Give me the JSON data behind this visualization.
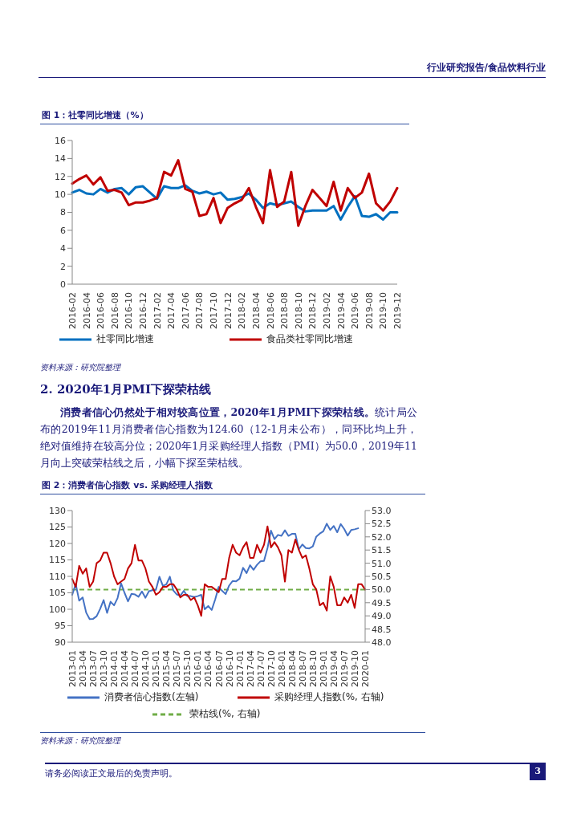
{
  "chart_data": [
    {
      "type": "line",
      "title": "图 1：社零同比增速（%）",
      "categories": [
        "2016-02",
        null,
        "2016-04",
        null,
        "2016-06",
        null,
        "2016-08",
        null,
        "2016-10",
        null,
        "2016-12",
        null,
        "2017-02",
        null,
        "2017-04",
        null,
        "2017-06",
        null,
        "2017-08",
        null,
        "2017-10",
        null,
        "2017-12",
        null,
        "2018-02",
        null,
        "2018-04",
        null,
        "2018-06",
        null,
        "2018-08",
        null,
        "2018-10",
        null,
        "2018-12",
        null,
        "2019-02",
        null,
        "2019-04",
        null,
        "2019-06",
        null,
        "2019-08",
        null,
        "2019-10",
        null,
        "2019-12"
      ],
      "series": [
        {
          "name": "社零同比增速",
          "color": "#0070c0",
          "values": [
            10.2,
            10.5,
            10.1,
            10.0,
            10.6,
            10.2,
            10.6,
            10.7,
            10.0,
            10.8,
            10.9,
            10.2,
            9.5,
            10.9,
            10.7,
            10.7,
            11.0,
            10.4,
            10.1,
            10.3,
            10.0,
            10.2,
            9.4,
            9.5,
            9.7,
            10.1,
            9.4,
            8.5,
            9.0,
            8.8,
            9.0,
            9.2,
            8.6,
            8.1,
            8.2,
            8.2,
            8.2,
            8.7,
            7.2,
            8.6,
            9.8,
            7.6,
            7.5,
            7.8,
            7.2,
            8.0,
            8.0
          ]
        },
        {
          "name": "食品类社零同比增速",
          "color": "#c00000",
          "values": [
            11.2,
            11.7,
            12.1,
            11.1,
            11.9,
            10.4,
            10.5,
            10.2,
            8.8,
            9.1,
            9.1,
            9.3,
            9.6,
            12.5,
            12.1,
            13.8,
            10.6,
            10.3,
            7.6,
            7.8,
            9.6,
            6.8,
            8.5,
            9.0,
            9.4,
            10.7,
            8.6,
            6.8,
            12.7,
            8.6,
            9.2,
            12.5,
            6.5,
            8.7,
            10.5,
            9.6,
            8.7,
            11.4,
            8.2,
            10.7,
            9.6,
            10.2,
            12.3,
            9.0,
            8.2,
            9.2,
            10.7
          ]
        }
      ],
      "ylim": [
        0,
        16
      ],
      "yticks": [
        0,
        2,
        4,
        6,
        8,
        10,
        12,
        14,
        16
      ],
      "legend": "bottom",
      "marker": "none",
      "line_style": "solid",
      "annotations": [
        "行业研究报告/食品饮料行业",
        "资料来源：研究院整理"
      ]
    },
    {
      "type": "line",
      "title": "图 2：消费者信心指数 vs. 采购经理人指数",
      "categories": [
        "2013-01",
        null,
        null,
        "2013-04",
        null,
        null,
        "2013-07",
        null,
        null,
        "2013-10",
        null,
        null,
        "2014-01",
        null,
        null,
        "2014-04",
        null,
        null,
        "2014-07",
        null,
        null,
        "2014-10",
        null,
        null,
        "2015-01",
        null,
        null,
        "2015-04",
        null,
        null,
        "2015-07",
        null,
        null,
        "2015-10",
        null,
        null,
        "2016-01",
        null,
        null,
        "2016-04",
        null,
        null,
        "2016-07",
        null,
        null,
        "2016-10",
        null,
        null,
        "2017-01",
        null,
        null,
        "2017-04",
        null,
        null,
        "2017-07",
        null,
        null,
        "2017-10",
        null,
        null,
        "2018-01",
        null,
        null,
        "2018-04",
        null,
        null,
        "2018-07",
        null,
        null,
        "2018-10",
        null,
        null,
        "2019-01",
        null,
        null,
        "2019-04",
        null,
        null,
        "2019-07",
        null,
        null,
        "2019-10",
        null,
        null,
        "2020-01"
      ],
      "series": [
        {
          "name": "消费者信心指数(左轴)",
          "color": "#4472c4",
          "values": [
            104.4,
            107.7,
            102.6,
            103.6,
            99.0,
            97.0,
            97.1,
            97.9,
            100.1,
            102.8,
            98.9,
            102.3,
            101.2,
            103.4,
            107.9,
            105.0,
            102.4,
            104.7,
            104.5,
            103.8,
            105.4,
            103.5,
            105.5,
            105.8,
            105.9,
            109.9,
            107.1,
            107.6,
            109.9,
            105.7,
            104.5,
            104.1,
            105.6,
            104.0,
            104.0,
            103.7,
            104.0,
            104.4,
            100.0,
            101.0,
            99.8,
            103.0,
            106.8,
            105.6,
            104.6,
            107.2,
            108.6,
            108.5,
            109.3,
            112.6,
            111.0,
            113.4,
            112.0,
            113.5,
            114.6,
            114.7,
            118.6,
            123.9,
            121.3,
            122.6,
            122.3,
            124.0,
            122.3,
            122.9,
            122.9,
            118.2,
            119.7,
            118.6,
            118.5,
            119.1,
            122.1,
            123.0,
            123.7,
            126.0,
            124.1,
            125.3,
            123.4,
            125.9,
            124.4,
            122.4,
            124.1,
            124.3,
            124.6,
            null,
            null
          ]
        },
        {
          "name": "采购经理人指数(%, 右轴)",
          "color": "#c00000",
          "axis": "y2",
          "values": [
            50.4,
            50.1,
            50.9,
            50.6,
            50.8,
            50.1,
            50.3,
            51.0,
            51.1,
            51.4,
            51.4,
            51.0,
            50.5,
            50.2,
            50.3,
            50.4,
            50.8,
            51.0,
            51.7,
            51.1,
            51.1,
            50.8,
            50.3,
            50.1,
            49.8,
            49.9,
            50.1,
            50.1,
            50.2,
            50.2,
            50.0,
            49.7,
            49.8,
            49.8,
            49.6,
            49.7,
            49.4,
            49.0,
            50.2,
            50.1,
            50.1,
            50.0,
            49.9,
            50.4,
            50.4,
            51.2,
            51.7,
            51.4,
            51.3,
            51.6,
            51.8,
            51.2,
            51.2,
            51.7,
            51.4,
            51.7,
            52.4,
            51.6,
            51.8,
            51.6,
            51.3,
            50.3,
            51.5,
            51.4,
            51.9,
            51.5,
            51.2,
            51.3,
            50.8,
            50.2,
            50.0,
            49.4,
            49.5,
            49.2,
            50.5,
            50.1,
            49.4,
            49.4,
            49.7,
            49.5,
            49.8,
            49.3,
            50.2,
            50.2,
            50.0
          ]
        }
      ],
      "ylim": [
        90,
        130
      ],
      "yticks": [
        90,
        95,
        100,
        105,
        110,
        115,
        120,
        125,
        130
      ],
      "y2lim": [
        48,
        53
      ],
      "y2ticks": [
        {
          "value": 48,
          "label": "48.0"
        },
        {
          "value": 48.5,
          "label": "48.5"
        },
        {
          "value": 49,
          "label": "49.0"
        },
        {
          "value": 49.5,
          "label": "49.5"
        },
        {
          "value": 50,
          "label": "50.0"
        },
        {
          "value": 50.5,
          "label": "50.5"
        },
        {
          "value": 51,
          "label": "51.0"
        },
        {
          "value": 51.5,
          "label": "51.5"
        },
        {
          "value": 52,
          "label": "52.0"
        },
        {
          "value": 52.5,
          "label": "52.5"
        },
        {
          "value": 53,
          "label": "53.0"
        }
      ],
      "ref_lines": [
        {
          "axis": "y2",
          "value": 50,
          "label": "荣枯线(%, 右轴)",
          "color": "#70ad47",
          "line_style": "dashed"
        }
      ],
      "legend": "bottom",
      "marker": "none",
      "line_style": "solid",
      "annotations": [
        "2. 2020年1月PMI下探荣枯线",
        "消费者信心仍然处于相对较高位置，2020年1月PMI下探荣枯线。",
        "统计局公布的2019年11月消费者信心指数为124.60（12-1月未公布），同环比均上升，绝对值维持在较高分位；2020年1月采购经理人指数（PMI）为50.0，2019年11月向上突破荣枯线之后，小幅下探至荣枯线。",
        "资料来源：研究院整理",
        "请务必阅读正文最后的免责声明。",
        "3"
      ]
    }
  ]
}
